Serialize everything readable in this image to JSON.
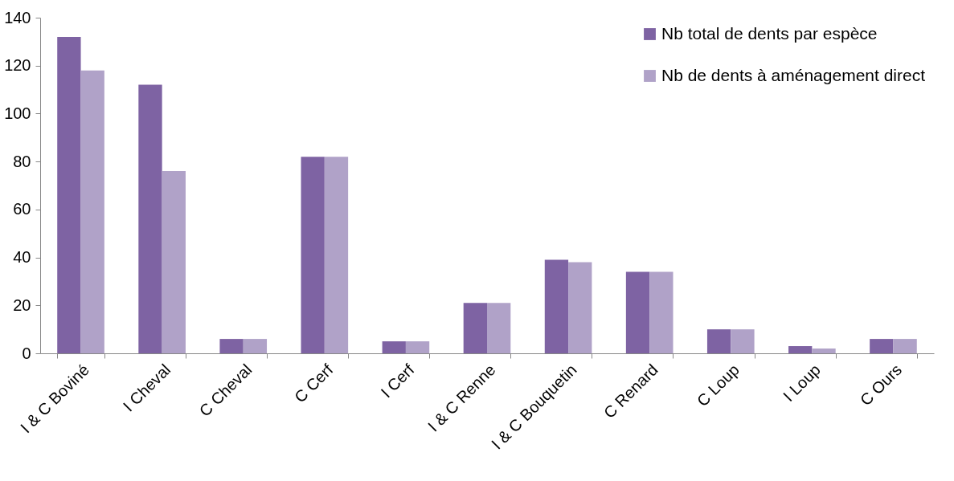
{
  "chart_data": {
    "type": "bar",
    "categories": [
      "I & C Boviné",
      "I Cheval",
      "C Cheval",
      "C Cerf",
      "I Cerf",
      "I & C Renne",
      "I & C Bouquetin",
      "C Renard",
      "C Loup",
      "I Loup",
      "C Ours"
    ],
    "series": [
      {
        "name": "Nb total de dents par espèce",
        "color": "#7e63a3",
        "values": [
          132,
          112,
          6,
          82,
          5,
          21,
          39,
          34,
          10,
          3,
          6
        ]
      },
      {
        "name": "Nb de dents à aménagement direct",
        "color": "#b0a2c8",
        "values": [
          118,
          76,
          6,
          82,
          5,
          21,
          38,
          34,
          10,
          2,
          6
        ]
      }
    ],
    "ylim": [
      0,
      140
    ],
    "yticks": [
      0,
      20,
      40,
      60,
      80,
      100,
      120,
      140
    ],
    "grid": false,
    "legend": "top right"
  }
}
